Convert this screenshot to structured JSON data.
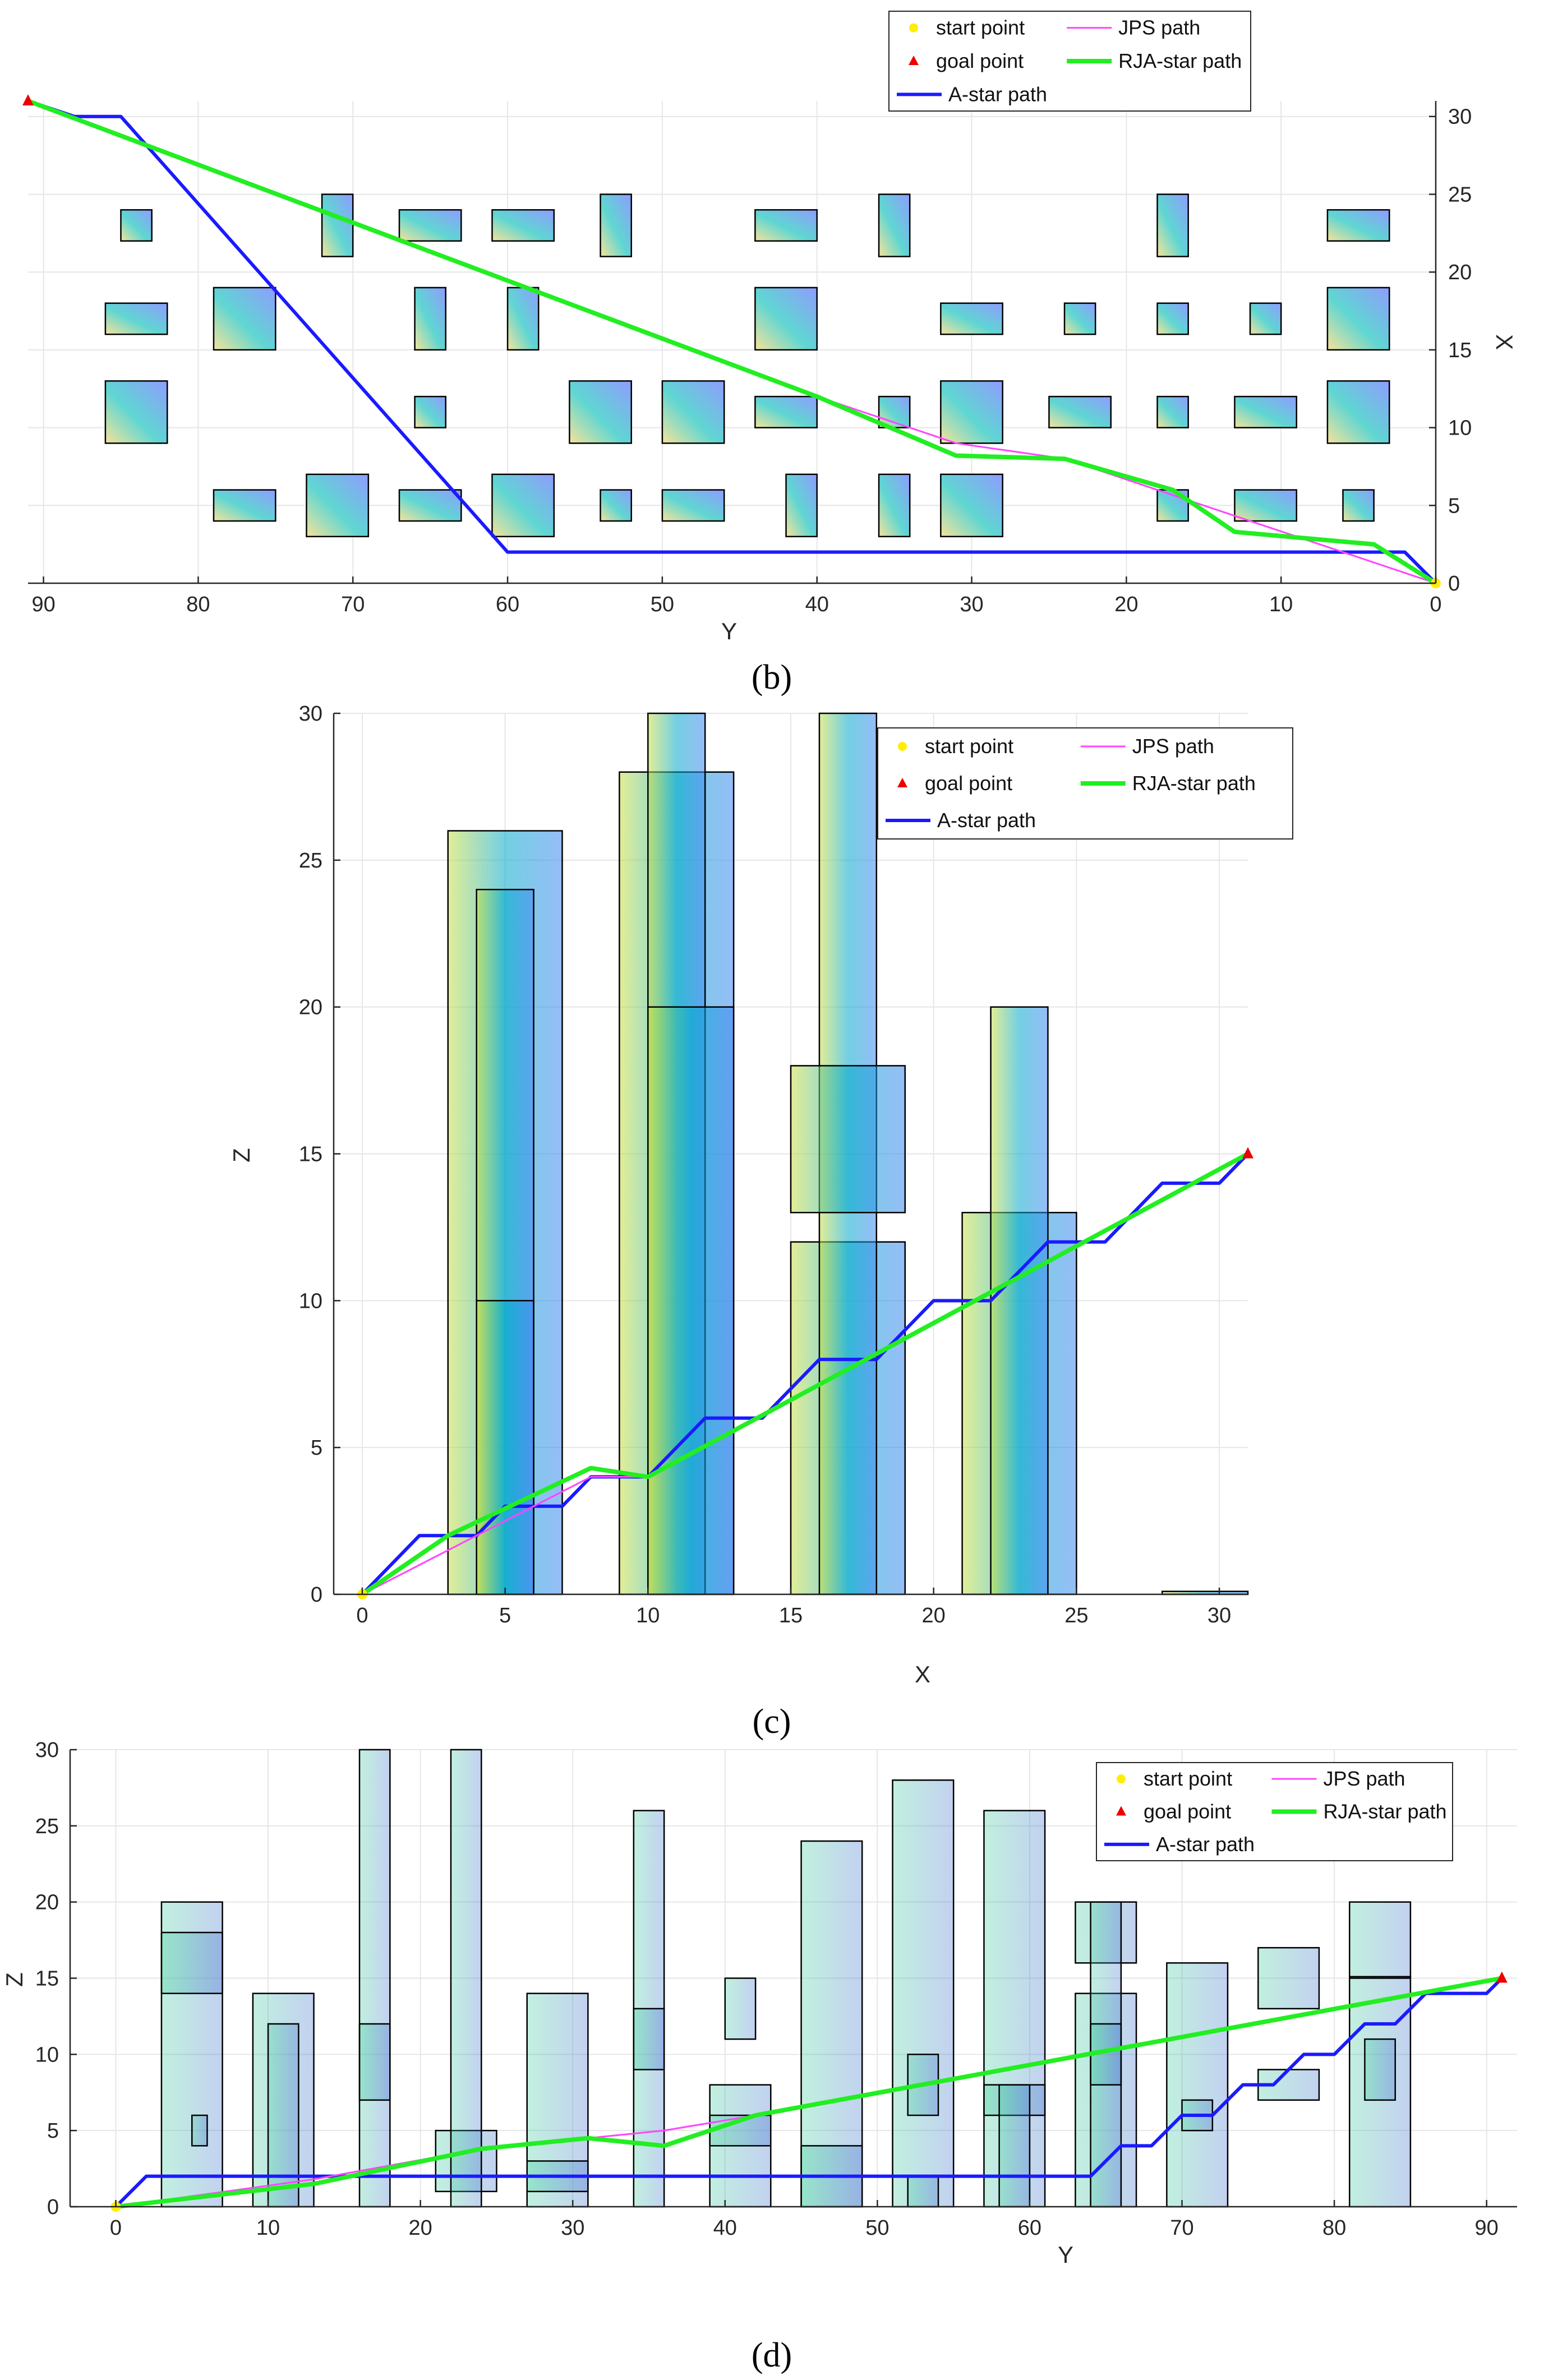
{
  "legend": {
    "start": "start point",
    "goal": "goal point",
    "astar": "A-star path",
    "jps": "JPS path",
    "rja": "RJA-star path"
  },
  "colors": {
    "astar": "#1a1aff",
    "jps": "#ff44ff",
    "rja": "#22ee22",
    "start": "#ffee00",
    "goal": "#ee0000"
  },
  "chart_data": [
    {
      "type": "line",
      "panel": "(b)",
      "view": "top (X vs Y)",
      "xlabel": "Y",
      "ylabel": "X",
      "xlim": [
        91,
        0
      ],
      "ylim": [
        0,
        31
      ],
      "xticks": [
        90,
        80,
        70,
        60,
        50,
        40,
        30,
        20,
        10,
        0
      ],
      "yticks": [
        0,
        5,
        10,
        15,
        20,
        25,
        30
      ],
      "start": [
        0,
        0
      ],
      "goal": [
        91,
        31
      ],
      "series": [
        {
          "name": "A-star path",
          "x": [
            0,
            2,
            60,
            85,
            88,
            91
          ],
          "y": [
            0,
            2,
            2,
            30,
            30,
            31
          ]
        },
        {
          "name": "JPS path",
          "x": [
            0,
            12,
            24,
            31,
            40,
            91
          ],
          "y": [
            0,
            4,
            8,
            9,
            12,
            31
          ]
        },
        {
          "name": "RJA-star path",
          "x": [
            0,
            4,
            13,
            17,
            24,
            31,
            40,
            91
          ],
          "y": [
            0,
            2.5,
            3.3,
            6,
            8,
            8.2,
            12,
            31
          ]
        }
      ],
      "obstacles": [
        [
          83,
          85,
          22,
          24
        ],
        [
          70,
          72,
          21,
          25
        ],
        [
          63,
          67,
          22,
          24
        ],
        [
          57,
          61,
          22,
          24
        ],
        [
          52,
          54,
          21,
          25
        ],
        [
          40,
          44,
          22,
          24
        ],
        [
          34,
          36,
          21,
          25
        ],
        [
          16,
          18,
          21,
          25
        ],
        [
          3,
          7,
          22,
          24
        ],
        [
          82,
          86,
          16,
          18
        ],
        [
          75,
          79,
          15,
          19
        ],
        [
          64,
          66,
          15,
          19
        ],
        [
          58,
          60,
          15,
          19
        ],
        [
          40,
          44,
          15,
          19
        ],
        [
          28,
          32,
          16,
          18
        ],
        [
          22,
          24,
          16,
          18
        ],
        [
          16,
          18,
          16,
          18
        ],
        [
          10,
          12,
          16,
          18
        ],
        [
          3,
          7,
          15,
          19
        ],
        [
          82,
          86,
          9,
          13
        ],
        [
          64,
          66,
          10,
          12
        ],
        [
          52,
          56,
          9,
          13
        ],
        [
          46,
          50,
          9,
          13
        ],
        [
          40,
          44,
          10,
          12
        ],
        [
          34,
          36,
          10,
          12
        ],
        [
          28,
          32,
          9,
          13
        ],
        [
          21,
          25,
          10,
          12
        ],
        [
          16,
          18,
          10,
          12
        ],
        [
          9,
          13,
          10,
          12
        ],
        [
          3,
          7,
          9,
          13
        ],
        [
          75,
          79,
          4,
          6
        ],
        [
          69,
          73,
          3,
          7
        ],
        [
          63,
          67,
          4,
          6
        ],
        [
          57,
          61,
          3,
          7
        ],
        [
          52,
          54,
          4,
          6
        ],
        [
          46,
          50,
          4,
          6
        ],
        [
          40,
          42,
          3,
          7
        ],
        [
          34,
          36,
          3,
          7
        ],
        [
          28,
          32,
          3,
          7
        ],
        [
          16,
          18,
          4,
          6
        ],
        [
          9,
          13,
          4,
          6
        ],
        [
          4,
          6,
          4,
          6
        ]
      ]
    },
    {
      "type": "line",
      "panel": "(c)",
      "view": "side (Z vs X)",
      "xlabel": "X",
      "ylabel": "Z",
      "xlim": [
        -1,
        31
      ],
      "ylim": [
        0,
        30
      ],
      "xticks": [
        0,
        5,
        10,
        15,
        20,
        25,
        30
      ],
      "yticks": [
        0,
        5,
        10,
        15,
        20,
        25,
        30
      ],
      "start": [
        0,
        0
      ],
      "goal": [
        31,
        15
      ],
      "series": [
        {
          "name": "A-star path",
          "x": [
            0,
            2,
            3,
            4,
            5,
            6,
            7,
            8,
            9,
            10,
            11,
            12,
            13,
            14,
            15,
            16,
            17,
            18,
            19,
            20,
            21,
            22,
            23,
            24,
            25,
            26,
            27,
            28,
            29,
            30,
            31
          ],
          "y": [
            0,
            2,
            2,
            2,
            3,
            3,
            3,
            4,
            4,
            4,
            5,
            6,
            6,
            6,
            7,
            8,
            8,
            8,
            9,
            10,
            10,
            10,
            11,
            12,
            12,
            12,
            13,
            14,
            14,
            14,
            15
          ]
        },
        {
          "name": "JPS path",
          "x": [
            0,
            8,
            10,
            31
          ],
          "y": [
            0,
            4,
            4,
            15
          ]
        },
        {
          "name": "RJA-star path",
          "x": [
            0,
            3,
            8,
            10,
            31
          ],
          "y": [
            0,
            2,
            4.3,
            4,
            15
          ]
        }
      ],
      "obstacles": [
        [
          3,
          7,
          0,
          26
        ],
        [
          4,
          6,
          0,
          24
        ],
        [
          4,
          6,
          0,
          10
        ],
        [
          9,
          13,
          0,
          28
        ],
        [
          10,
          12,
          0,
          30
        ],
        [
          10,
          13,
          0,
          20
        ],
        [
          15,
          19,
          0,
          12
        ],
        [
          16,
          18,
          0,
          30
        ],
        [
          15,
          19,
          13,
          18
        ],
        [
          21,
          25,
          0,
          13
        ],
        [
          22,
          24,
          0,
          20
        ],
        [
          28,
          31,
          0,
          0.1
        ]
      ]
    },
    {
      "type": "line",
      "panel": "(d)",
      "view": "side (Z vs Y)",
      "xlabel": "Y",
      "ylabel": "Z",
      "xlim": [
        -3,
        92
      ],
      "ylim": [
        0,
        30
      ],
      "xticks": [
        0,
        10,
        20,
        30,
        40,
        50,
        60,
        70,
        80,
        90
      ],
      "yticks": [
        0,
        5,
        10,
        15,
        20,
        25,
        30
      ],
      "start": [
        0,
        0
      ],
      "goal": [
        91,
        15
      ],
      "series": [
        {
          "name": "A-star path",
          "x": [
            0,
            2,
            64,
            66,
            68,
            70,
            72,
            74,
            76,
            78,
            80,
            82,
            84,
            86,
            90,
            91
          ],
          "y": [
            0,
            2,
            2,
            4,
            4,
            6,
            6,
            8,
            8,
            10,
            10,
            12,
            12,
            14,
            14,
            15
          ]
        },
        {
          "name": "JPS path",
          "x": [
            0,
            13,
            24,
            36,
            42,
            91
          ],
          "y": [
            0,
            1.8,
            3.8,
            5,
            6,
            15
          ]
        },
        {
          "name": "RJA-star path",
          "x": [
            0,
            13,
            24,
            31,
            36,
            42,
            91
          ],
          "y": [
            0,
            1.5,
            3.8,
            4.5,
            4,
            6,
            15
          ]
        }
      ],
      "obstacles": [
        [
          3,
          7,
          0,
          20
        ],
        [
          3,
          7,
          14,
          18
        ],
        [
          5,
          6,
          4,
          6
        ],
        [
          9,
          13,
          0,
          14
        ],
        [
          10,
          12,
          0,
          12
        ],
        [
          16,
          18,
          0,
          30
        ],
        [
          16,
          18,
          7,
          12
        ],
        [
          21,
          25,
          1,
          5
        ],
        [
          22,
          24,
          0,
          30
        ],
        [
          27,
          31,
          0,
          14
        ],
        [
          27,
          31,
          1,
          3
        ],
        [
          34,
          36,
          0,
          26
        ],
        [
          34,
          36,
          9,
          13
        ],
        [
          40,
          42,
          11,
          15
        ],
        [
          39,
          43,
          0,
          8
        ],
        [
          39,
          43,
          4,
          6
        ],
        [
          45,
          49,
          0,
          24
        ],
        [
          45,
          49,
          0,
          4
        ],
        [
          51,
          55,
          0,
          28
        ],
        [
          52,
          54,
          6,
          10
        ],
        [
          52,
          54,
          0,
          2
        ],
        [
          57,
          61,
          0,
          26
        ],
        [
          57,
          61,
          6,
          8
        ],
        [
          58,
          60,
          0,
          8
        ],
        [
          63,
          67,
          16,
          20
        ],
        [
          63,
          67,
          0,
          14
        ],
        [
          64,
          66,
          0,
          20
        ],
        [
          64,
          66,
          8,
          12
        ],
        [
          69,
          73,
          0,
          16
        ],
        [
          70,
          72,
          5,
          7
        ],
        [
          75,
          79,
          13,
          17
        ],
        [
          75,
          79,
          7,
          9
        ],
        [
          81,
          85,
          0,
          20
        ],
        [
          81,
          85,
          15,
          15.1
        ],
        [
          82,
          84,
          7,
          11
        ]
      ]
    }
  ],
  "panel_labels": [
    "(b)",
    "(c)",
    "(d)"
  ]
}
